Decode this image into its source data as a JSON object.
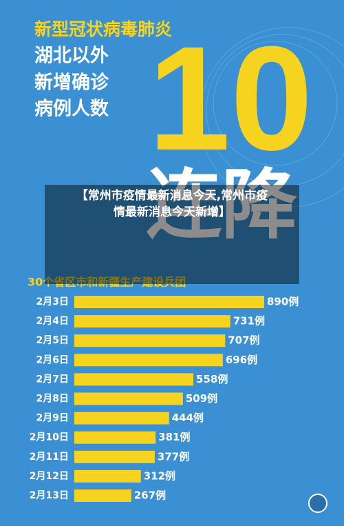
{
  "chart_data": {
    "type": "bar",
    "orientation": "horizontal",
    "title": "新型冠状病毒肺炎",
    "title_lines": [
      "湖北以外",
      "新增确诊",
      "病例人数"
    ],
    "big_number": "10",
    "big_text": "连降",
    "caption": [
      "【常州市疫情最新消息今天,常州市疫",
      "情最新消息今天新增】"
    ],
    "subtitle": "30个省区市和新疆生产建设兵团",
    "categories": [
      "2月3日",
      "2月4日",
      "2月5日",
      "2月6日",
      "2月7日",
      "2月8日",
      "2月9日",
      "2月10日",
      "2月11日",
      "2月12日",
      "2月13日"
    ],
    "values": [
      890,
      731,
      707,
      696,
      558,
      509,
      444,
      381,
      377,
      312,
      267
    ],
    "value_labels": [
      "890例",
      "731例",
      "707例",
      "696例",
      "558例",
      "509例",
      "444例",
      "381例",
      "377例",
      "312例",
      "267例"
    ],
    "color": "#f6d31e"
  }
}
